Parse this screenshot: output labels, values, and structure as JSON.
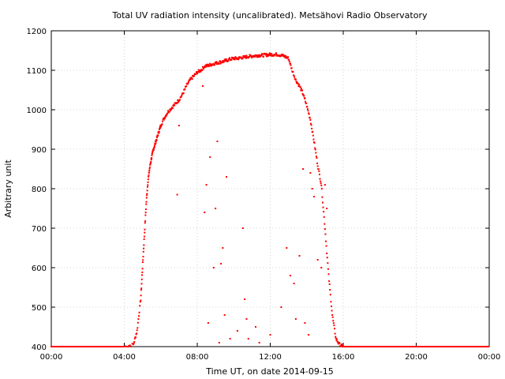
{
  "chart_data": {
    "type": "scatter",
    "title": "Total UV radiation intensity (uncalibrated). Metsähovi Radio Observatory",
    "xlabel": "Time UT, on date 2014-09-15",
    "ylabel": "Arbitrary unit",
    "xlim": [
      0,
      24
    ],
    "ylim": [
      400,
      1200
    ],
    "x_ticks": [
      {
        "value": 0,
        "label": "00:00"
      },
      {
        "value": 4,
        "label": "04:00"
      },
      {
        "value": 8,
        "label": "08:00"
      },
      {
        "value": 12,
        "label": "12:00"
      },
      {
        "value": 16,
        "label": "16:00"
      },
      {
        "value": 20,
        "label": "20:00"
      },
      {
        "value": 24,
        "label": "00:00"
      }
    ],
    "y_ticks": [
      400,
      500,
      600,
      700,
      800,
      900,
      1000,
      1100,
      1200
    ],
    "grid": true,
    "marker_color": "#ff0000",
    "main_curve": {
      "x": [
        4.0,
        4.5,
        4.7,
        4.9,
        5.0,
        5.1,
        5.2,
        5.3,
        5.4,
        5.5,
        5.6,
        5.7,
        5.8,
        5.9,
        6.0,
        6.2,
        6.4,
        6.6,
        6.8,
        7.0,
        7.2,
        7.4,
        7.6,
        7.8,
        8.0,
        8.2,
        8.4,
        8.6,
        8.8,
        9.0,
        9.2,
        9.4,
        9.6,
        9.8,
        10.0,
        10.2,
        10.4,
        10.6,
        10.8,
        11.0,
        11.2,
        11.4,
        11.6,
        11.8,
        12.0,
        12.2,
        12.4,
        12.6,
        12.8,
        13.0,
        13.2,
        13.4,
        13.6,
        13.8,
        14.0,
        14.2,
        14.4,
        14.6,
        14.8,
        15.0,
        15.2,
        15.4,
        15.6,
        15.8,
        16.0
      ],
      "y": [
        400,
        405,
        440,
        520,
        600,
        680,
        760,
        820,
        855,
        880,
        900,
        915,
        930,
        945,
        960,
        980,
        995,
        1005,
        1015,
        1025,
        1040,
        1060,
        1075,
        1085,
        1095,
        1100,
        1110,
        1112,
        1115,
        1118,
        1120,
        1122,
        1125,
        1128,
        1130,
        1130,
        1132,
        1133,
        1135,
        1136,
        1137,
        1138,
        1138,
        1139,
        1140,
        1140,
        1140,
        1138,
        1135,
        1130,
        1100,
        1075,
        1060,
        1040,
        1010,
        975,
        920,
        860,
        810,
        700,
        580,
        480,
        420,
        405,
        400
      ]
    },
    "dips": {
      "x": [
        6.9,
        7.0,
        8.3,
        8.4,
        8.5,
        8.7,
        9.0,
        9.1,
        9.4,
        9.6,
        10.5,
        10.6,
        10.7,
        11.2,
        12.9,
        13.1,
        13.3,
        13.6,
        13.8,
        14.2,
        14.3,
        14.4,
        14.6,
        14.8,
        15.0,
        15.1,
        8.6,
        9.2,
        9.8,
        10.2,
        11.4,
        12.0,
        13.4,
        14.1,
        8.9,
        9.3,
        9.5,
        10.8,
        12.6,
        13.9
      ],
      "y": [
        785,
        960,
        1060,
        740,
        810,
        880,
        750,
        920,
        650,
        830,
        700,
        520,
        470,
        450,
        650,
        580,
        560,
        630,
        850,
        840,
        800,
        780,
        620,
        600,
        810,
        750,
        460,
        410,
        420,
        440,
        410,
        430,
        470,
        430,
        600,
        610,
        480,
        420,
        500,
        460
      ]
    },
    "baseline": {
      "y": 400,
      "x_ranges": [
        [
          0,
          4.0
        ],
        [
          16.0,
          24
        ]
      ]
    }
  }
}
